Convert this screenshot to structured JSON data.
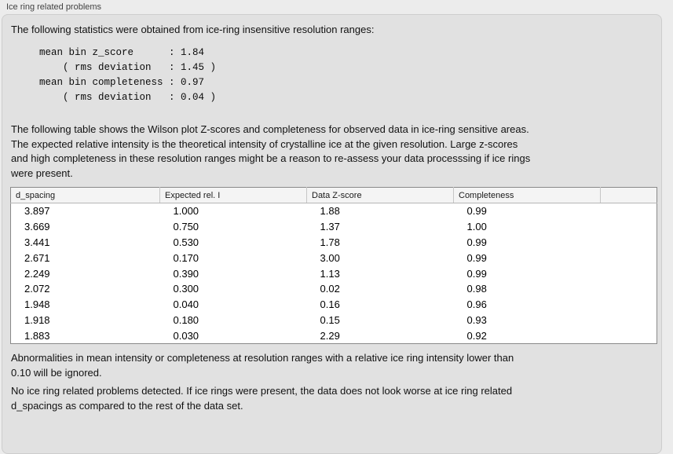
{
  "panel": {
    "title": "Ice ring related problems"
  },
  "intro": {
    "text": "The following statistics were obtained from ice-ring insensitive resolution ranges:",
    "stats_block": "mean bin z_score      : 1.84\n    ( rms deviation   : 1.45 )\nmean bin completeness : 0.97\n    ( rms deviation   : 0.04 )"
  },
  "description": {
    "text": "The following table shows the Wilson plot Z-scores and completeness for observed data in ice-ring sensitive areas.\nThe expected relative intensity is the theoretical intensity of crystalline ice at the given resolution. Large z-scores\nand high completeness in these resolution ranges might be a reason to re-assess your data processsing if ice rings\nwere present."
  },
  "table": {
    "columns": [
      "d_spacing",
      "Expected rel. I",
      "Data Z-score",
      "Completeness",
      ""
    ],
    "rows": [
      [
        "3.897",
        "1.000",
        "1.88",
        "0.99"
      ],
      [
        "3.669",
        "0.750",
        "1.37",
        "1.00"
      ],
      [
        "3.441",
        "0.530",
        "1.78",
        "0.99"
      ],
      [
        "2.671",
        "0.170",
        "3.00",
        "0.99"
      ],
      [
        "2.249",
        "0.390",
        "1.13",
        "0.99"
      ],
      [
        "2.072",
        "0.300",
        "0.02",
        "0.98"
      ],
      [
        "1.948",
        "0.040",
        "0.16",
        "0.96"
      ],
      [
        "1.918",
        "0.180",
        "0.15",
        "0.93"
      ],
      [
        "1.883",
        "0.030",
        "2.29",
        "0.92"
      ]
    ]
  },
  "notes": {
    "ignore_text": "Abnormalities in mean intensity or completeness at resolution ranges with a relative ice ring intensity lower than\n0.10 will be ignored.",
    "result_text": "No ice ring related problems detected. If ice rings were present, the data does not look worse at ice ring related\nd_spacings as compared to the rest of the data set."
  },
  "colors": {
    "window_background": "#ececec",
    "panel_background": "#e1e1e1",
    "table_background": "#ffffff",
    "text": "#121212"
  }
}
